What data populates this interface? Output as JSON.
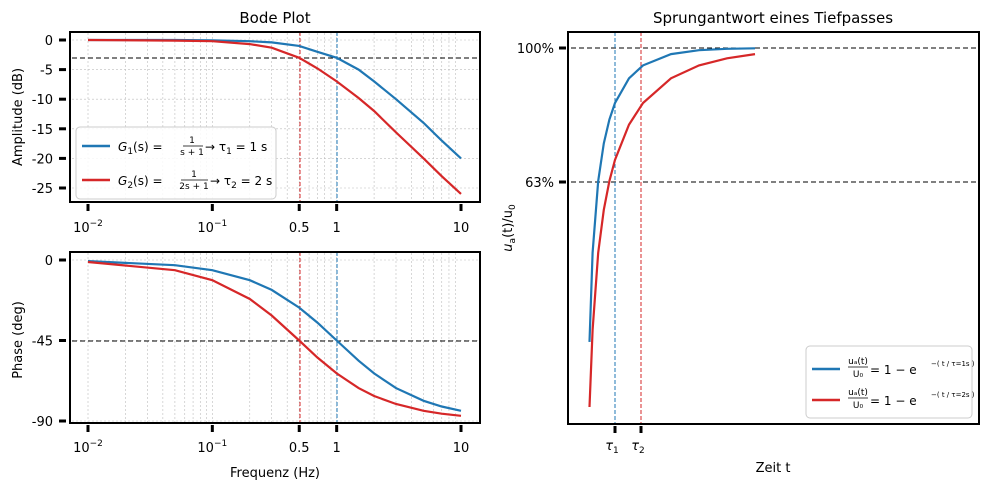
{
  "bode": {
    "title": "Bode Plot",
    "amp_ylabel": "Amplitude (dB)",
    "phase_ylabel": "Phase (deg)",
    "xlabel": "Frequenz (Hz)",
    "amp_yticks": [
      "0",
      "-5",
      "-10",
      "-15",
      "-20",
      "-25"
    ],
    "phase_yticks": [
      "0",
      "-45",
      "-90"
    ],
    "xticks": [
      {
        "base": "10",
        "exp": "−2",
        "plain": ""
      },
      {
        "base": "10",
        "exp": "−1",
        "plain": ""
      },
      {
        "base": "",
        "exp": "",
        "plain": "0.5"
      },
      {
        "base": "",
        "exp": "",
        "plain": "1"
      },
      {
        "base": "",
        "exp": "",
        "plain": "10"
      }
    ],
    "legend": [
      {
        "g": "G",
        "sub": "1",
        "mid": "(s) = ",
        "num": "1",
        "den": "s + 1",
        "rest": " → τ",
        "rsub": "1",
        "rend": " = 1 s",
        "color": "#1f77b4"
      },
      {
        "g": "G",
        "sub": "2",
        "mid": "(s) = ",
        "num": "1",
        "den": "2s + 1",
        "rest": " → τ",
        "rsub": "2",
        "rend": " = 2 s",
        "color": "#d62728"
      }
    ]
  },
  "step": {
    "title": "Sprungantwort eines Tiefpasses",
    "ylabel_main": "u",
    "ylabel_sub_a": "a",
    "ylabel_rest": "(t)/u",
    "ylabel_sub_0": "0",
    "xlabel": "Zeit t",
    "yticks": [
      "100%",
      "63%"
    ],
    "xticks": [
      {
        "sym": "τ",
        "sub": "1"
      },
      {
        "sym": "τ",
        "sub": "2"
      }
    ],
    "legend": [
      {
        "frac_num": "uₐ(t)",
        "frac_den": "U₀",
        "eq": " = 1 − e",
        "exp": "−( t / τ=1s )",
        "color": "#1f77b4"
      },
      {
        "frac_num": "uₐ(t)",
        "frac_den": "U₀",
        "eq": " = 1 − e",
        "exp": "−( t / τ=2s )",
        "color": "#d62728"
      }
    ]
  },
  "chart_data": [
    {
      "type": "line",
      "title": "Bode Plot",
      "xlabel": "",
      "ylabel": "Amplitude (dB)",
      "x_scale": "log",
      "xlim": [
        0.01,
        10
      ],
      "ylim": [
        -26,
        0
      ],
      "series": [
        {
          "name": "G1(s) = 1/(s+1) → τ1 = 1 s",
          "color": "#1f77b4",
          "x": [
            0.01,
            0.05,
            0.1,
            0.2,
            0.3,
            0.5,
            0.7,
            1,
            1.5,
            2,
            3,
            5,
            7,
            10
          ],
          "y": [
            0,
            0,
            -0.05,
            -0.2,
            -0.4,
            -1,
            -2,
            -3,
            -5,
            -7,
            -10,
            -14,
            -17,
            -20
          ]
        },
        {
          "name": "G2(s) = 1/(2s+1) → τ2 = 2 s",
          "color": "#d62728",
          "x": [
            0.01,
            0.05,
            0.1,
            0.2,
            0.3,
            0.5,
            0.7,
            1,
            1.5,
            2,
            3,
            5,
            7,
            10
          ],
          "y": [
            0,
            -0.1,
            -0.2,
            -0.7,
            -1.3,
            -3,
            -4.8,
            -7,
            -9.8,
            -12,
            -15.6,
            -20,
            -23,
            -26
          ]
        }
      ],
      "annotations": {
        "hline_db": -3,
        "vlines": [
          0.5,
          1
        ]
      }
    },
    {
      "type": "line",
      "title": "",
      "xlabel": "Frequenz (Hz)",
      "ylabel": "Phase (deg)",
      "x_scale": "log",
      "xlim": [
        0.01,
        10
      ],
      "ylim": [
        -90,
        0
      ],
      "series": [
        {
          "name": "G1",
          "color": "#1f77b4",
          "x": [
            0.01,
            0.05,
            0.1,
            0.2,
            0.3,
            0.5,
            0.7,
            1,
            1.5,
            2,
            3,
            5,
            7,
            10
          ],
          "y": [
            -0.6,
            -2.9,
            -5.7,
            -11.3,
            -16.7,
            -26.6,
            -35,
            -45,
            -56.3,
            -63.4,
            -71.6,
            -78.7,
            -81.9,
            -84.3
          ]
        },
        {
          "name": "G2",
          "color": "#d62728",
          "x": [
            0.01,
            0.05,
            0.1,
            0.2,
            0.3,
            0.5,
            0.7,
            1,
            1.5,
            2,
            3,
            5,
            7,
            10
          ],
          "y": [
            -1.1,
            -5.7,
            -11.3,
            -21.8,
            -31,
            -45,
            -54.5,
            -63.4,
            -71.6,
            -76,
            -80.5,
            -84.3,
            -85.9,
            -87.1
          ]
        }
      ],
      "annotations": {
        "hline_deg": -45,
        "vlines": [
          0.5,
          1
        ]
      }
    },
    {
      "type": "line",
      "title": "Sprungantwort eines Tiefpasses",
      "xlabel": "Zeit t",
      "ylabel": "ua(t)/u0",
      "y_scale": "log",
      "ylim": [
        0.05,
        1.0
      ],
      "series": [
        {
          "name": "ua(t)/U0 = 1 − e^−(t/τ=1s)",
          "color": "#1f77b4",
          "t_over_tau": [
            0.09,
            0.2,
            0.4,
            0.6,
            0.8,
            1,
            1.5,
            2,
            3,
            4,
            5,
            6
          ]
        },
        {
          "name": "ua(t)/U0 = 1 − e^−(t/τ=2s)",
          "color": "#d62728",
          "t_over_tau": [
            0.045,
            0.1,
            0.2,
            0.3,
            0.4,
            0.5,
            0.75,
            1,
            1.5,
            2,
            2.5,
            3
          ]
        }
      ],
      "annotations": {
        "hlines_percent": [
          100,
          63
        ],
        "vlines": [
          "τ1",
          "τ2"
        ]
      }
    }
  ]
}
